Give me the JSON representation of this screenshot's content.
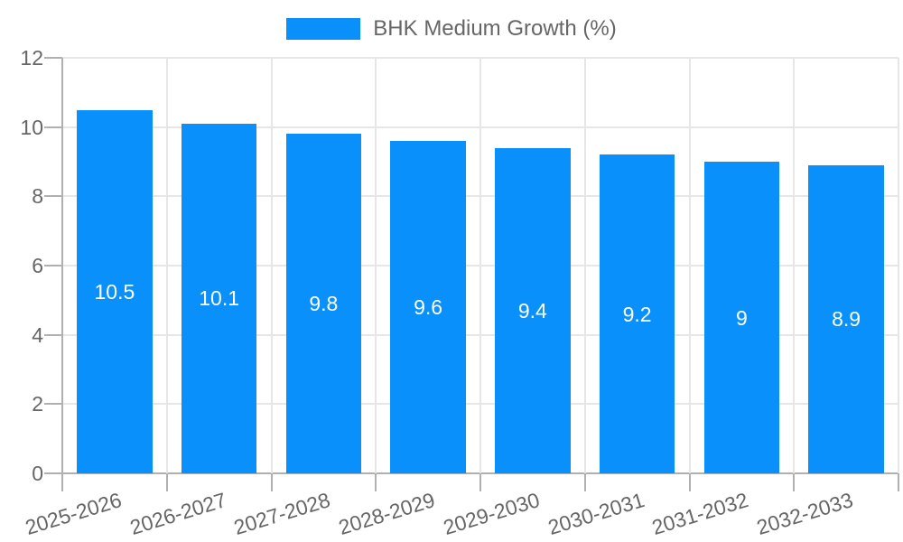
{
  "legend": {
    "label": "BHK Medium Growth (%)",
    "position": "top"
  },
  "chart_data": {
    "type": "bar",
    "title": "",
    "series_name": "BHK Medium Growth (%)",
    "categories": [
      "2025-2026",
      "2026-2027",
      "2027-2028",
      "2028-2029",
      "2029-2030",
      "2030-2031",
      "2031-2032",
      "2032-2033"
    ],
    "values": [
      10.5,
      10.1,
      9.8,
      9.6,
      9.4,
      9.2,
      9,
      8.9
    ],
    "bar_labels": [
      "10.5",
      "10.1",
      "9.8",
      "9.6",
      "9.4",
      "9.2",
      "9",
      "8.9"
    ],
    "xlabel": "",
    "ylabel": "",
    "y_ticks": [
      0,
      2,
      4,
      6,
      8,
      10,
      12
    ],
    "ylim": [
      0,
      12
    ],
    "grid": true,
    "legend_position": "top",
    "colors": {
      "bar": "#0a90fa",
      "grid": "#e6e6e6",
      "axis": "#b0b0b0",
      "tick_text": "#666666",
      "bar_label_text": "#ffffff",
      "background": "#ffffff"
    }
  }
}
